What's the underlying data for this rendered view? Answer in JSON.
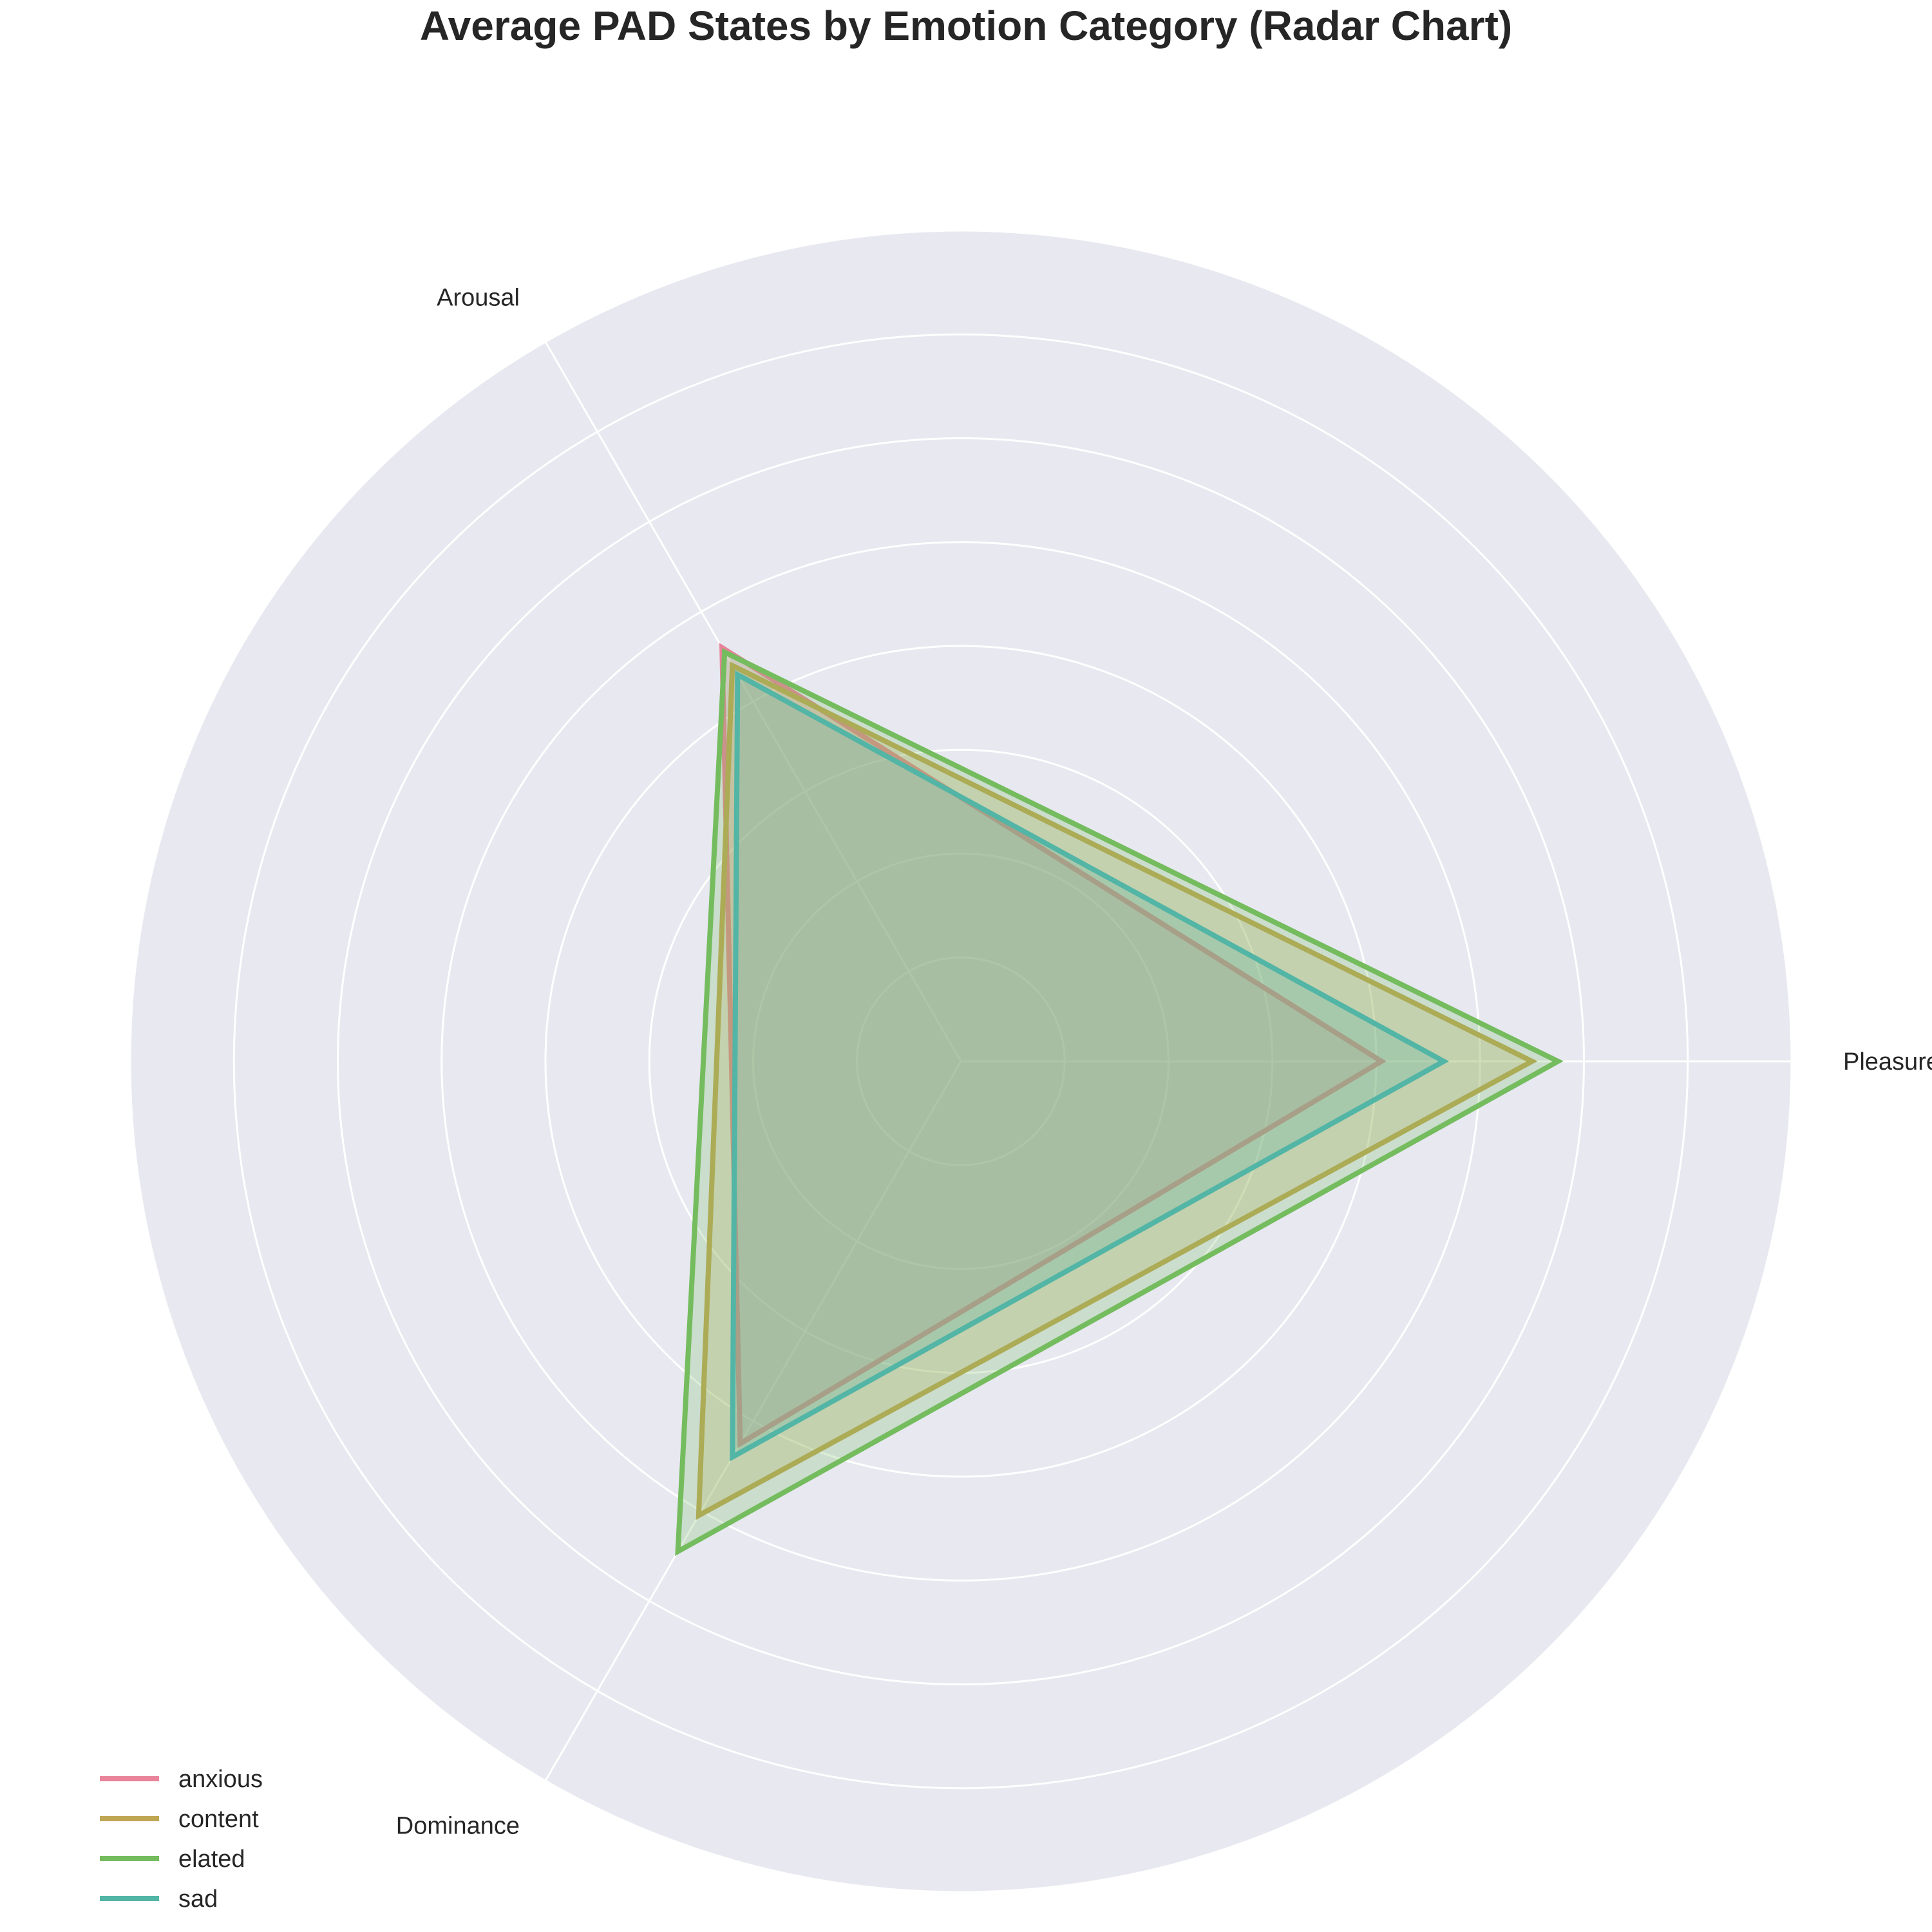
{
  "chart_data": {
    "type": "radar",
    "title": "Average PAD States by Emotion Category (Radar Chart)",
    "axes": [
      "Pleasure",
      "Arousal",
      "Dominance"
    ],
    "rlim": [
      -4,
      4
    ],
    "rings": [
      -3,
      -2,
      -1,
      0,
      1,
      2,
      3,
      4
    ],
    "grid": true,
    "legend_position": "lower-left",
    "series": [
      {
        "name": "anxious",
        "values": [
          0.05,
          0.6,
          0.25
        ],
        "color": "#e8839a"
      },
      {
        "name": "content",
        "values": [
          1.5,
          0.4,
          1.05
        ],
        "color": "#bfa653"
      },
      {
        "name": "elated",
        "values": [
          1.75,
          0.55,
          1.45
        ],
        "color": "#74bc5e"
      },
      {
        "name": "sad",
        "values": [
          0.65,
          0.3,
          0.4
        ],
        "color": "#52b5a5"
      }
    ]
  }
}
